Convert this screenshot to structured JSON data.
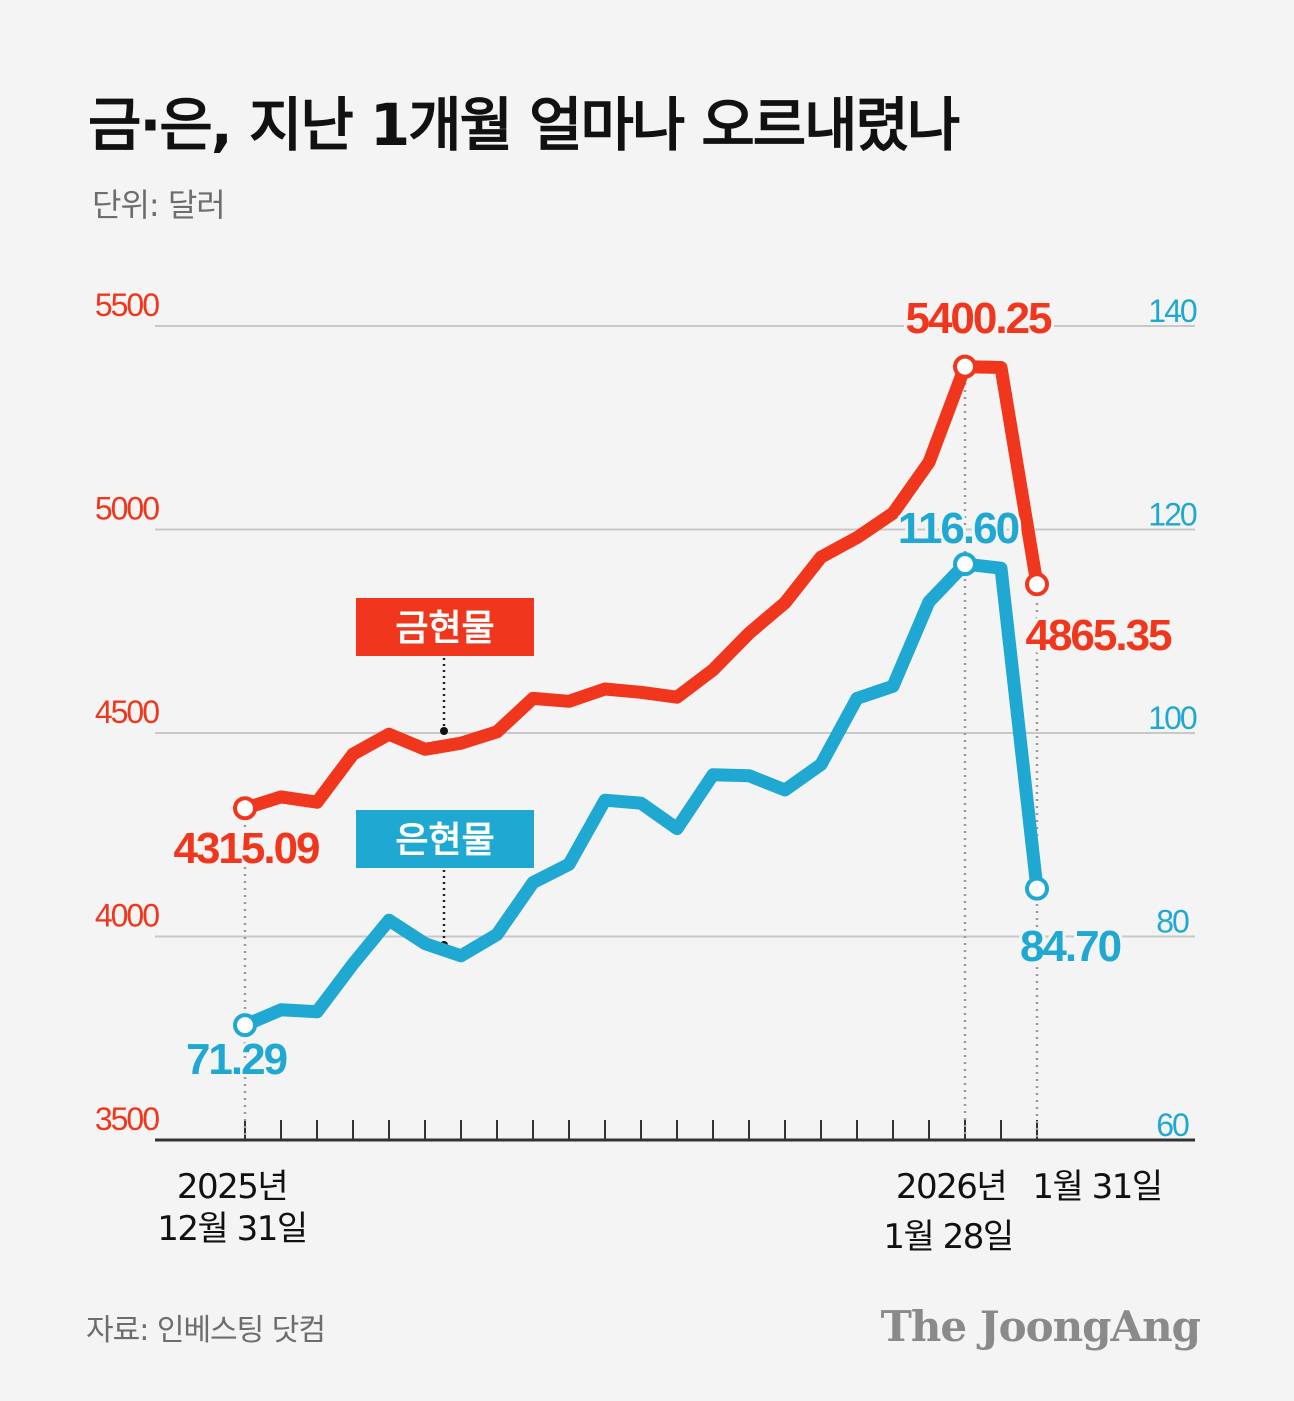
{
  "title": "금·은, 지난 1개월 얼마나 오르내렸나",
  "unit": "단위: 달러",
  "source": "자료: 인베스팅 닷컴",
  "logo": "The JoongAng",
  "colors": {
    "gold": "#f0361c",
    "silver": "#1fa8d1",
    "grid": "#c8c8c8",
    "axis": "#333333"
  },
  "chart_data": {
    "type": "line",
    "x_labels": [
      {
        "lines": [
          "2025년",
          "12월 31일"
        ],
        "date": "2025-12-31"
      },
      {
        "lines": [
          "2026년 1월 28일"
        ],
        "date": "2026-01-28"
      },
      {
        "lines": [
          "1월 31일"
        ],
        "date": "2026-01-31"
      }
    ],
    "n_ticks": 23,
    "left_axis": {
      "color_key": "gold",
      "ticks": [
        3500,
        4000,
        4500,
        5000,
        5500
      ],
      "range": [
        3500,
        5500
      ]
    },
    "right_axis": {
      "color_key": "silver",
      "ticks": [
        60,
        80,
        100,
        120,
        140
      ],
      "range": [
        60,
        140
      ]
    },
    "series": [
      {
        "name": "금현물",
        "axis": "left",
        "color_key": "gold",
        "values": [
          4315.09,
          4343,
          4330,
          4448,
          4497,
          4460,
          4475,
          4503,
          4585,
          4578,
          4608,
          4600,
          4588,
          4655,
          4745,
          4820,
          4932,
          4980,
          5040,
          5165,
          5400.25,
          5398,
          4865.35
        ],
        "annotations": [
          {
            "index": 0,
            "label": "4315.09"
          },
          {
            "index": 20,
            "label": "5400.25"
          },
          {
            "index": 22,
            "label": "4865.35"
          }
        ]
      },
      {
        "name": "은현물",
        "axis": "right",
        "color_key": "silver",
        "values": [
          71.29,
          72.8,
          72.6,
          77.3,
          81.6,
          79.3,
          78.1,
          80.2,
          85.3,
          87.1,
          93.4,
          93.1,
          90.6,
          95.9,
          95.8,
          94.4,
          96.9,
          103.4,
          104.6,
          112.9,
          116.6,
          116.2,
          84.7
        ],
        "annotations": [
          {
            "index": 0,
            "label": "71.29"
          },
          {
            "index": 20,
            "label": "116.60"
          },
          {
            "index": 22,
            "label": "84.70"
          }
        ]
      }
    ],
    "legend": [
      {
        "label": "금현물",
        "series_index": 0
      },
      {
        "label": "은현물",
        "series_index": 1
      }
    ]
  }
}
